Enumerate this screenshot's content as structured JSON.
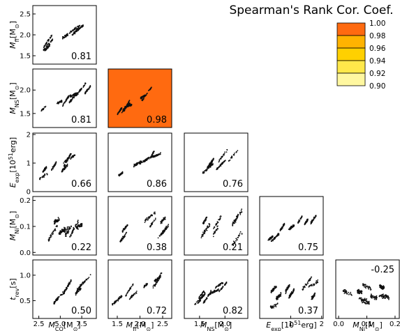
{
  "title": "Spearman's Rank Cor. Coef.",
  "chart_data": {
    "type": "scatter",
    "title": "Spearman's Rank Cor. Coef.",
    "variables": [
      {
        "key": "mco",
        "ylabel": "",
        "xlabel": "M_CO[M_⊙]",
        "lim": [
          1.8,
          9.2
        ],
        "xticks": [
          2.5,
          5.0,
          7.5
        ]
      },
      {
        "key": "mff",
        "ylabel": "M_ff[M_⊙]",
        "xlabel": "M_ff[M_⊙]",
        "lim": [
          1.3,
          2.7
        ],
        "yticks": [
          1.5,
          2.0,
          2.5
        ],
        "xticks": [
          1.5,
          2.0,
          2.5
        ]
      },
      {
        "key": "mns",
        "ylabel": "M_NS[M_⊙]",
        "xlabel": "M_NS[M_⊙]",
        "lim": [
          1.2,
          2.45
        ],
        "yticks": [
          1.5,
          2.0
        ],
        "xticks": [
          1.5,
          2.0
        ]
      },
      {
        "key": "eexp",
        "ylabel": "E_exp[10^51erg]",
        "xlabel": "E_exp[10^51erg]",
        "lim": [
          0.0,
          2.05
        ],
        "yticks": [
          0,
          1,
          2
        ],
        "xticks": [
          1,
          2
        ]
      },
      {
        "key": "mni",
        "ylabel": "M_Ni[M_⊙]",
        "xlabel": "M_Ni[M_⊙]",
        "lim": [
          -0.01,
          0.215
        ],
        "yticks": [
          0.0,
          0.1,
          0.2
        ],
        "xticks": [
          0.0,
          0.1,
          0.2
        ]
      },
      {
        "key": "trev",
        "ylabel": "t_rev[s]",
        "xlabel": "",
        "lim": [
          0.15,
          1.3
        ],
        "yticks": [
          0.5,
          1.0
        ]
      }
    ],
    "panels": [
      {
        "row": 1,
        "col": 0,
        "coef": "0.81",
        "value": 0.81
      },
      {
        "row": 2,
        "col": 0,
        "coef": "0.81",
        "value": 0.81
      },
      {
        "row": 2,
        "col": 1,
        "coef": "0.98",
        "value": 0.98
      },
      {
        "row": 3,
        "col": 0,
        "coef": "0.66",
        "value": 0.66
      },
      {
        "row": 3,
        "col": 1,
        "coef": "0.86",
        "value": 0.86
      },
      {
        "row": 3,
        "col": 2,
        "coef": "0.76",
        "value": 0.76
      },
      {
        "row": 4,
        "col": 0,
        "coef": "0.22",
        "value": 0.22
      },
      {
        "row": 4,
        "col": 1,
        "coef": "0.38",
        "value": 0.38
      },
      {
        "row": 4,
        "col": 2,
        "coef": "0.21",
        "value": 0.21
      },
      {
        "row": 4,
        "col": 3,
        "coef": "0.75",
        "value": 0.75
      },
      {
        "row": 5,
        "col": 0,
        "coef": "0.50",
        "value": 0.5
      },
      {
        "row": 5,
        "col": 1,
        "coef": "0.72",
        "value": 0.72
      },
      {
        "row": 5,
        "col": 2,
        "coef": "0.82",
        "value": 0.82
      },
      {
        "row": 5,
        "col": 3,
        "coef": "0.37",
        "value": 0.37
      },
      {
        "row": 5,
        "col": 4,
        "coef": "-0.25",
        "value": -0.25
      }
    ],
    "colorbar": {
      "labels": [
        "1.00",
        "0.98",
        "0.96",
        "0.94",
        "0.92",
        "0.90"
      ],
      "colors": [
        "#ff6a10",
        "#ffb300",
        "#ffd000",
        "#ffe84a",
        "#fff7a0",
        "#fffbdc"
      ]
    },
    "points_per_panel": "dense scatter (approximated)"
  }
}
